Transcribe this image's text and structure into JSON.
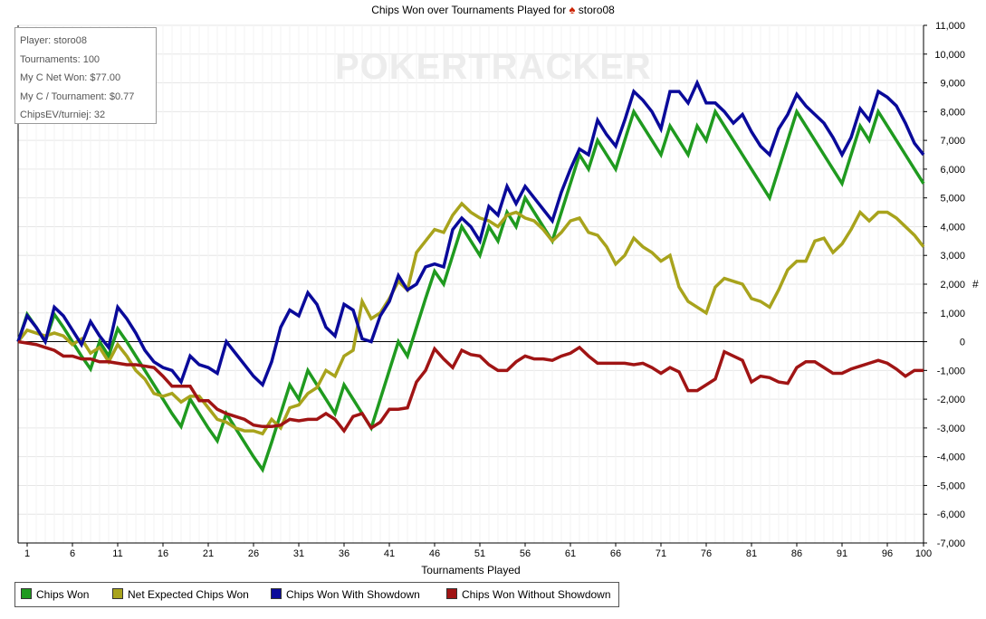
{
  "title": {
    "prefix": "Chips Won over Tournaments Played for",
    "player": "storo08"
  },
  "info": {
    "player": "Player: storo08",
    "tournaments": "Tournaments: 100",
    "net_won": "My C Net Won: $77.00",
    "per_tournament": "My C / Tournament: $0.77",
    "chipsev": "ChipsEV/turniej: 32"
  },
  "watermark": "POKERTRACKER",
  "chart_data": {
    "type": "line",
    "title": "Chips Won over Tournaments Played for storo08",
    "xlabel": "Tournaments Played",
    "ylabel": "#",
    "xlim": [
      0,
      100
    ],
    "ylim": [
      -7000,
      11000
    ],
    "xticks": [
      1,
      6,
      11,
      16,
      21,
      26,
      31,
      36,
      41,
      46,
      51,
      56,
      61,
      66,
      71,
      76,
      81,
      86,
      91,
      96,
      100
    ],
    "yticks": [
      -7000,
      -6000,
      -5000,
      -4000,
      -3000,
      -2000,
      -1000,
      0,
      1000,
      2000,
      3000,
      4000,
      5000,
      6000,
      7000,
      8000,
      9000,
      10000,
      11000
    ],
    "ytick_labels": [
      "-7,000",
      "-6,000",
      "-5,000",
      "-4,000",
      "-3,000",
      "-2,000",
      "-1,000",
      "0",
      "1,000",
      "2,000",
      "3,000",
      "4,000",
      "5,000",
      "6,000",
      "7,000",
      "8,000",
      "9,000",
      "10,000",
      "11,000"
    ],
    "grid": true,
    "legend_position": "bottom",
    "x": [
      0,
      1,
      2,
      3,
      4,
      5,
      6,
      7,
      8,
      9,
      10,
      11,
      12,
      13,
      14,
      15,
      16,
      17,
      18,
      19,
      20,
      21,
      22,
      23,
      24,
      25,
      26,
      27,
      28,
      29,
      30,
      31,
      32,
      33,
      34,
      35,
      36,
      37,
      38,
      39,
      40,
      41,
      42,
      43,
      44,
      45,
      46,
      47,
      48,
      49,
      50,
      51,
      52,
      53,
      54,
      55,
      56,
      57,
      58,
      59,
      60,
      61,
      62,
      63,
      64,
      65,
      66,
      67,
      68,
      69,
      70,
      71,
      72,
      73,
      74,
      75,
      76,
      77,
      78,
      79,
      80,
      81,
      82,
      83,
      84,
      85,
      86,
      87,
      88,
      89,
      90,
      91,
      92,
      93,
      94,
      95,
      96,
      97,
      98,
      99,
      100
    ],
    "series": [
      {
        "name": "Chips Won",
        "color": "#1f9a1f",
        "values": [
          0,
          950,
          500,
          0,
          950,
          500,
          0,
          -500,
          -950,
          0,
          -500,
          450,
          0,
          -500,
          -1000,
          -1500,
          -2000,
          -2500,
          -2950,
          -2000,
          -2500,
          -3000,
          -3450,
          -2500,
          -3000,
          -3500,
          -4000,
          -4450,
          -3500,
          -2500,
          -1500,
          -2000,
          -1000,
          -1500,
          -2000,
          -2500,
          -1500,
          -2000,
          -2500,
          -3000,
          -2000,
          -1000,
          0,
          -500,
          500,
          1500,
          2450,
          2000,
          3000,
          4000,
          3500,
          3000,
          4000,
          3500,
          4500,
          4000,
          5000,
          4500,
          4000,
          3500,
          4500,
          5500,
          6500,
          6000,
          7000,
          6500,
          6000,
          7000,
          8000,
          7500,
          7000,
          6500,
          7500,
          7000,
          6500,
          7500,
          7000,
          8000,
          7500,
          7000,
          6500,
          6000,
          5500,
          5000,
          6000,
          7000,
          8000,
          7500,
          7000,
          6500,
          6000,
          5500,
          6500,
          7500,
          7000,
          8000,
          7500,
          7000,
          6500,
          6000,
          5500
        ]
      },
      {
        "name": "Net Expected Chips Won",
        "color": "#a8a31c",
        "values": [
          0,
          400,
          300,
          200,
          300,
          200,
          -100,
          100,
          -400,
          -200,
          -700,
          -100,
          -500,
          -1000,
          -1300,
          -1800,
          -1900,
          -1800,
          -2100,
          -1900,
          -1900,
          -2300,
          -2700,
          -2800,
          -3000,
          -3100,
          -3100,
          -3200,
          -2700,
          -3000,
          -2300,
          -2200,
          -1800,
          -1600,
          -1000,
          -1200,
          -500,
          -300,
          1400,
          800,
          1000,
          1500,
          2100,
          1800,
          3100,
          3500,
          3900,
          3800,
          4400,
          4800,
          4500,
          4300,
          4200,
          4000,
          4400,
          4500,
          4300,
          4200,
          3900,
          3500,
          3800,
          4200,
          4300,
          3800,
          3700,
          3300,
          2700,
          3000,
          3600,
          3300,
          3100,
          2800,
          3000,
          1900,
          1400,
          1200,
          1000,
          1900,
          2200,
          2100,
          2000,
          1500,
          1400,
          1200,
          1800,
          2500,
          2800,
          2800,
          3500,
          3600,
          3100,
          3400,
          3900,
          4500,
          4200,
          4500,
          4500,
          4300,
          4000,
          3700,
          3300
        ]
      },
      {
        "name": "Chips Won With Showdown",
        "color": "#0a0a9a",
        "values": [
          0,
          900,
          500,
          0,
          1200,
          900,
          400,
          -100,
          700,
          200,
          -200,
          1200,
          800,
          300,
          -300,
          -700,
          -900,
          -1000,
          -1400,
          -500,
          -800,
          -900,
          -1100,
          0,
          -400,
          -800,
          -1200,
          -1500,
          -700,
          500,
          1100,
          900,
          1700,
          1300,
          500,
          200,
          1300,
          1100,
          100,
          0,
          900,
          1400,
          2300,
          1800,
          2000,
          2600,
          2700,
          2600,
          3900,
          4300,
          4000,
          3500,
          4700,
          4400,
          5400,
          4800,
          5400,
          5000,
          4600,
          4200,
          5200,
          6000,
          6700,
          6500,
          7700,
          7200,
          6800,
          7700,
          8700,
          8400,
          8000,
          7400,
          8700,
          8700,
          8300,
          9000,
          8300,
          8300,
          8000,
          7600,
          7900,
          7300,
          6800,
          6500,
          7400,
          7900,
          8600,
          8200,
          7900,
          7600,
          7100,
          6500,
          7100,
          8100,
          7700,
          8700,
          8500,
          8200,
          7600,
          6900,
          6500
        ]
      },
      {
        "name": "Chips Won Without Showdown",
        "color": "#a01414",
        "values": [
          0,
          -50,
          -100,
          -200,
          -300,
          -500,
          -500,
          -600,
          -600,
          -700,
          -700,
          -750,
          -800,
          -800,
          -850,
          -900,
          -1200,
          -1550,
          -1550,
          -1550,
          -2050,
          -2050,
          -2350,
          -2500,
          -2600,
          -2700,
          -2900,
          -2950,
          -2950,
          -2900,
          -2700,
          -2750,
          -2700,
          -2700,
          -2500,
          -2700,
          -3100,
          -2600,
          -2500,
          -3000,
          -2800,
          -2350,
          -2350,
          -2300,
          -1400,
          -1000,
          -250,
          -600,
          -900,
          -300,
          -450,
          -500,
          -800,
          -1000,
          -1000,
          -700,
          -500,
          -600,
          -600,
          -650,
          -500,
          -400,
          -200,
          -500,
          -750,
          -750,
          -750,
          -750,
          -800,
          -750,
          -900,
          -1100,
          -900,
          -1050,
          -1700,
          -1700,
          -1500,
          -1300,
          -350,
          -500,
          -650,
          -1400,
          -1200,
          -1250,
          -1400,
          -1450,
          -900,
          -700,
          -700,
          -900,
          -1100,
          -1100,
          -950,
          -850,
          -750,
          -650,
          -750,
          -950,
          -1200,
          -1000,
          -1000
        ]
      }
    ]
  },
  "legend": {
    "items": [
      {
        "label": "Chips Won",
        "color": "#1f9a1f"
      },
      {
        "label": "Net Expected Chips Won",
        "color": "#a8a31c"
      },
      {
        "label": "Chips Won With Showdown",
        "color": "#0a0a9a"
      },
      {
        "label": "Chips Won Without Showdown",
        "color": "#a01414"
      }
    ]
  }
}
